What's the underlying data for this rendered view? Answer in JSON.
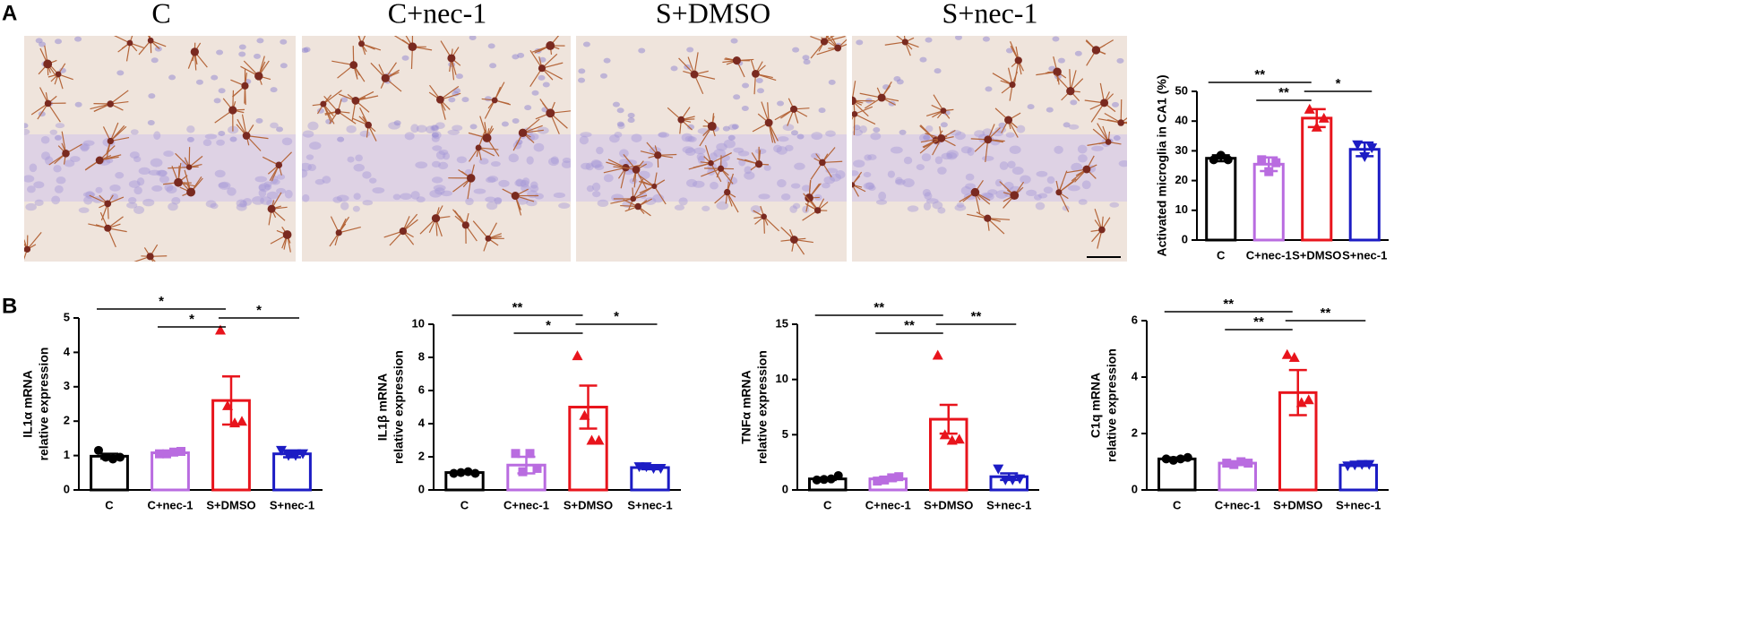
{
  "labels": {
    "panel_a": "A",
    "panel_b": "B",
    "images": [
      "C",
      "C+nec-1",
      "S+DMSO",
      "S+nec-1"
    ]
  },
  "chart_data": [
    {
      "type": "bar",
      "ylabel": [
        "Activated microglia in CA1 (%)"
      ],
      "categories": [
        "C",
        "C+nec-1",
        "S+DMSO",
        "S+nec-1"
      ],
      "values": [
        27.5,
        25.5,
        41,
        30.5
      ],
      "errors": [
        1,
        2.3,
        3,
        2.3
      ],
      "points": [
        [
          27,
          28.5,
          27
        ],
        [
          27,
          23,
          26
        ],
        [
          44,
          38,
          41
        ],
        [
          32,
          28,
          31
        ]
      ],
      "colors": [
        "#000000",
        "#b96ce0",
        "#e8141c",
        "#1c1cc4"
      ],
      "markers": [
        "circle",
        "square",
        "triangle",
        "triangle-down"
      ],
      "ylim": [
        0,
        50
      ],
      "yticks": [
        0,
        10,
        20,
        30,
        40,
        50
      ],
      "annotations": [
        {
          "text": "**",
          "pair": [
            0,
            2
          ]
        },
        {
          "text": "**",
          "pair": [
            1,
            2
          ]
        },
        {
          "text": "*",
          "pair": [
            2,
            3
          ]
        }
      ]
    },
    {
      "type": "bar",
      "ylabel": [
        "IL1α mRNA",
        "relative expression"
      ],
      "categories": [
        "C",
        "C+nec-1",
        "S+DMSO",
        "S+nec-1"
      ],
      "values": [
        0.98,
        1.08,
        2.6,
        1.05
      ],
      "errors": [
        0.07,
        0.05,
        0.7,
        0.1
      ],
      "points": [
        [
          1.15,
          0.95,
          0.9,
          0.95
        ],
        [
          1.05,
          1.05,
          1.1,
          1.12
        ],
        [
          4.65,
          2.45,
          1.95,
          2.0
        ],
        [
          1.15,
          1.0,
          1.0,
          1.05
        ]
      ],
      "colors": [
        "#000000",
        "#b96ce0",
        "#e8141c",
        "#1c1cc4"
      ],
      "markers": [
        "circle",
        "square",
        "triangle",
        "triangle-down"
      ],
      "ylim": [
        0,
        5
      ],
      "yticks": [
        0,
        1,
        2,
        3,
        4,
        5
      ],
      "annotations": [
        {
          "text": "*",
          "pair": [
            0,
            2
          ]
        },
        {
          "text": "*",
          "pair": [
            1,
            2
          ]
        },
        {
          "text": "*",
          "pair": [
            2,
            3
          ]
        }
      ]
    },
    {
      "type": "bar",
      "ylabel": [
        "IL1β mRNA",
        "relative expression"
      ],
      "categories": [
        "C",
        "C+nec-1",
        "S+DMSO",
        "S+nec-1"
      ],
      "values": [
        1.05,
        1.5,
        5.0,
        1.35
      ],
      "errors": [
        0.05,
        0.5,
        1.3,
        0.1
      ],
      "points": [
        [
          1.0,
          1.05,
          1.1,
          1.0
        ],
        [
          2.2,
          1.1,
          2.2,
          1.3
        ],
        [
          8.1,
          4.5,
          3.0,
          3.0
        ],
        [
          1.4,
          1.4,
          1.3,
          1.3
        ]
      ],
      "colors": [
        "#000000",
        "#b96ce0",
        "#e8141c",
        "#1c1cc4"
      ],
      "markers": [
        "circle",
        "square",
        "triangle",
        "triangle-down"
      ],
      "ylim": [
        0,
        10
      ],
      "yticks": [
        0,
        2,
        4,
        6,
        8,
        10
      ],
      "annotations": [
        {
          "text": "**",
          "pair": [
            0,
            2
          ]
        },
        {
          "text": "*",
          "pair": [
            1,
            2
          ]
        },
        {
          "text": "*",
          "pair": [
            2,
            3
          ]
        }
      ]
    },
    {
      "type": "bar",
      "ylabel": [
        "TNFα mRNA",
        "relative expression"
      ],
      "categories": [
        "C",
        "C+nec-1",
        "S+DMSO",
        "S+nec-1"
      ],
      "values": [
        1.0,
        1.0,
        6.4,
        1.2
      ],
      "errors": [
        0.1,
        0.2,
        1.3,
        0.3
      ],
      "points": [
        [
          0.9,
          0.95,
          1.0,
          1.3
        ],
        [
          0.8,
          0.9,
          1.1,
          1.2
        ],
        [
          12.2,
          5.0,
          4.5,
          4.6
        ],
        [
          1.9,
          0.9,
          0.9,
          1.0
        ]
      ],
      "colors": [
        "#000000",
        "#b96ce0",
        "#e8141c",
        "#1c1cc4"
      ],
      "markers": [
        "circle",
        "square",
        "triangle",
        "triangle-down"
      ],
      "ylim": [
        0,
        15
      ],
      "yticks": [
        0,
        5,
        10,
        15
      ],
      "annotations": [
        {
          "text": "**",
          "pair": [
            0,
            2
          ]
        },
        {
          "text": "**",
          "pair": [
            1,
            2
          ]
        },
        {
          "text": "**",
          "pair": [
            2,
            3
          ]
        }
      ]
    },
    {
      "type": "bar",
      "ylabel": [
        "C1q mRNA",
        "relative expression"
      ],
      "categories": [
        "C",
        "C+nec-1",
        "S+DMSO",
        "S+nec-1"
      ],
      "values": [
        1.1,
        0.95,
        3.45,
        0.88
      ],
      "errors": [
        0.05,
        0.05,
        0.8,
        0.03
      ],
      "points": [
        [
          1.1,
          1.05,
          1.1,
          1.15
        ],
        [
          0.95,
          0.9,
          1.0,
          0.95
        ],
        [
          4.8,
          4.7,
          3.1,
          3.2
        ],
        [
          0.85,
          0.88,
          0.9,
          0.9
        ]
      ],
      "colors": [
        "#000000",
        "#b96ce0",
        "#e8141c",
        "#1c1cc4"
      ],
      "markers": [
        "circle",
        "square",
        "triangle",
        "triangle-down"
      ],
      "ylim": [
        0,
        6
      ],
      "yticks": [
        0,
        2,
        4,
        6
      ],
      "annotations": [
        {
          "text": "**",
          "pair": [
            0,
            2
          ]
        },
        {
          "text": "**",
          "pair": [
            1,
            2
          ]
        },
        {
          "text": "**",
          "pair": [
            2,
            3
          ]
        }
      ]
    }
  ]
}
